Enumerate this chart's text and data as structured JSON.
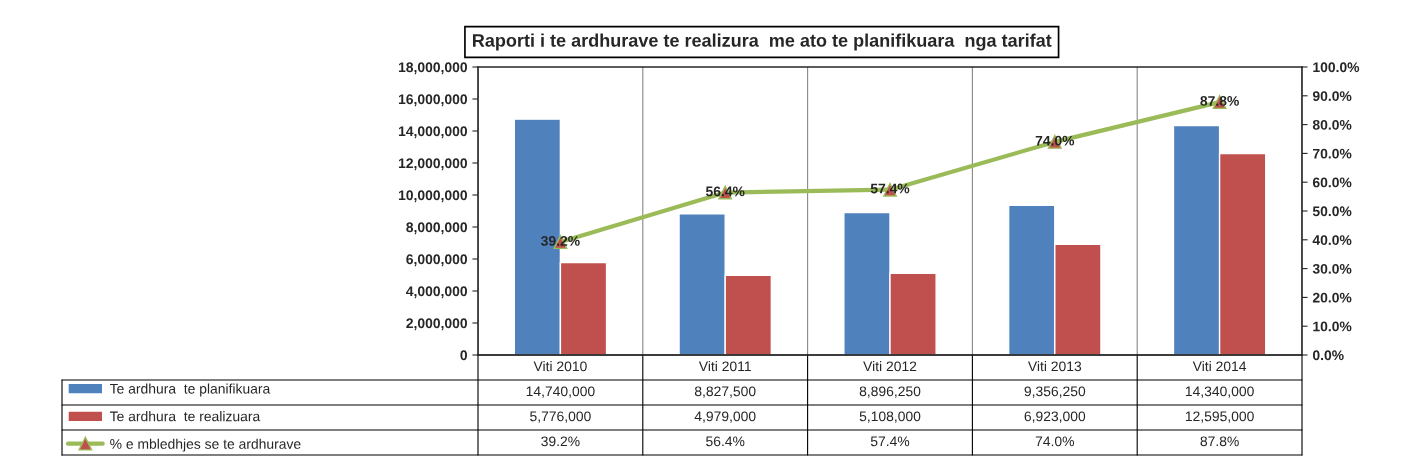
{
  "chart_data": {
    "type": "bar",
    "title": "Raporti i te ardhurave te realizura  me ato te planifikuara  nga tarifat",
    "categories": [
      "Viti 2010",
      "Viti 2011",
      "Viti 2012",
      "Viti 2013",
      "Viti 2014"
    ],
    "series": [
      {
        "name": "Te ardhura  te planifikuara",
        "color": "#4f81bd",
        "values": [
          14740000,
          8827500,
          8896250,
          9356250,
          14340000
        ],
        "value_labels": [
          "14,740,000",
          "8,827,500",
          "8,896,250",
          "9,356,250",
          "14,340,000"
        ]
      },
      {
        "name": "Te ardhura  te realizuara",
        "color": "#c0504d",
        "values": [
          5776000,
          4979000,
          5108000,
          6923000,
          12595000
        ],
        "value_labels": [
          "5,776,000",
          "4,979,000",
          "5,108,000",
          "6,923,000",
          "12,595,000"
        ]
      },
      {
        "name": "% e mbledhjes se te ardhurave",
        "type": "line",
        "axis": "y2",
        "color": "#9bbb59",
        "values": [
          39.2,
          56.4,
          57.4,
          74.0,
          87.8
        ],
        "value_labels": [
          "39.2%",
          "56.4%",
          "57.4%",
          "74.0%",
          "87.8%"
        ]
      }
    ],
    "ylim": [
      0,
      18000000
    ],
    "yticks": [
      {
        "value": 0,
        "label": "0"
      },
      {
        "value": 2000000,
        "label": "2,000,000"
      },
      {
        "value": 4000000,
        "label": "4,000,000"
      },
      {
        "value": 6000000,
        "label": "6,000,000"
      },
      {
        "value": 8000000,
        "label": "8,000,000"
      },
      {
        "value": 10000000,
        "label": "10,000,000"
      },
      {
        "value": 12000000,
        "label": "12,000,000"
      },
      {
        "value": 14000000,
        "label": "14,000,000"
      },
      {
        "value": 16000000,
        "label": "16,000,000"
      },
      {
        "value": 18000000,
        "label": "18,000,000"
      }
    ],
    "y2lim": [
      0,
      100
    ],
    "y2ticks": [
      {
        "value": 0,
        "label": "0.0%"
      },
      {
        "value": 10,
        "label": "10.0%"
      },
      {
        "value": 20,
        "label": "20.0%"
      },
      {
        "value": 30,
        "label": "30.0%"
      },
      {
        "value": 40,
        "label": "40.0%"
      },
      {
        "value": 50,
        "label": "50.0%"
      },
      {
        "value": 60,
        "label": "60.0%"
      },
      {
        "value": 70,
        "label": "70.0%"
      },
      {
        "value": 80,
        "label": "80.0%"
      },
      {
        "value": 90,
        "label": "90.0%"
      },
      {
        "value": 100,
        "label": "100.0%"
      }
    ],
    "marker": "triangle",
    "grid": "x",
    "legend": "bottom left"
  }
}
